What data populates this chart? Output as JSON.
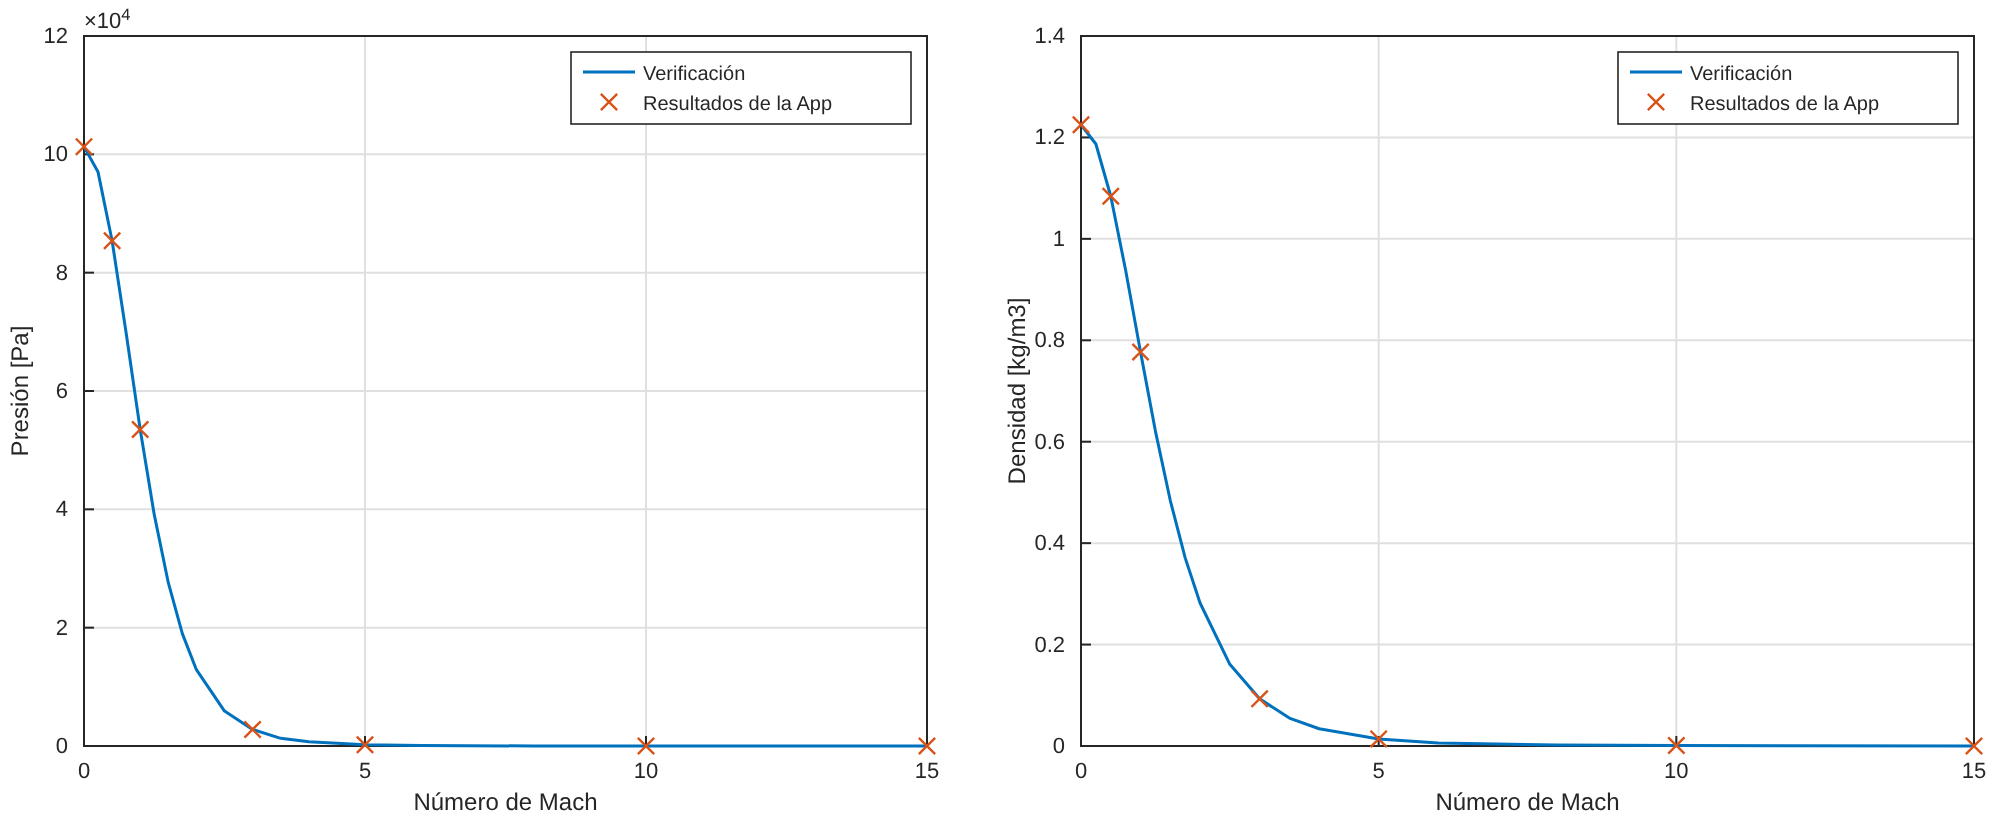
{
  "chart_data": [
    {
      "type": "line",
      "xlabel": "Número de Mach",
      "ylabel": "Presión [Pa]",
      "annotations": [
        "×10$^{4}$"
      ],
      "xlim": [
        0,
        15
      ],
      "xticks": [
        0,
        5,
        10,
        15
      ],
      "ylim": [
        0,
        12
      ],
      "yticks": [
        0,
        2,
        4,
        6,
        8,
        10,
        12
      ],
      "grid": true,
      "legend": "top right",
      "series": [
        {
          "name": "Verificación",
          "color": "#0072bd",
          "line_style": "solid",
          "x": [
            0,
            0.25,
            0.5,
            0.75,
            1,
            1.25,
            1.5,
            1.75,
            2,
            2.5,
            3,
            3.5,
            4,
            5,
            6,
            8,
            10,
            15
          ],
          "values": [
            10.13,
            9.7,
            8.54,
            6.98,
            5.35,
            3.91,
            2.76,
            1.9,
            1.29,
            0.59,
            0.28,
            0.13,
            0.07,
            0.02,
            0.01,
            0,
            0,
            0
          ]
        },
        {
          "name": "Resultados de la App",
          "type": "scatter",
          "color": "#d95319",
          "marker": "cross",
          "x": [
            0,
            0.5,
            1,
            3,
            5,
            10,
            15
          ],
          "values": [
            10.13,
            8.54,
            5.35,
            0.28,
            0.02,
            0,
            0
          ]
        }
      ]
    },
    {
      "type": "line",
      "xlabel": "Número de Mach",
      "ylabel": "Densidad [kg/m3]",
      "xlim": [
        0,
        15
      ],
      "xticks": [
        0,
        5,
        10,
        15
      ],
      "ylim": [
        0,
        1.4
      ],
      "yticks": [
        0,
        0.2,
        0.4,
        0.6,
        0.8,
        1,
        1.2,
        1.4
      ],
      "grid": true,
      "legend": "top right",
      "series": [
        {
          "name": "Verificación",
          "color": "#0072bd",
          "line_style": "solid",
          "x": [
            0,
            0.25,
            0.5,
            0.75,
            1,
            1.25,
            1.5,
            1.75,
            2,
            2.5,
            3,
            3.5,
            4,
            5,
            6,
            8,
            10,
            15
          ],
          "values": [
            1.225,
            1.187,
            1.084,
            0.938,
            0.777,
            0.621,
            0.484,
            0.371,
            0.282,
            0.161,
            0.093,
            0.055,
            0.034,
            0.014,
            0.006,
            0.002,
            0.001,
            0
          ]
        },
        {
          "name": "Resultados de la App",
          "type": "scatter",
          "color": "#d95319",
          "marker": "cross",
          "x": [
            0,
            0.5,
            1,
            3,
            5,
            10,
            15
          ],
          "values": [
            1.225,
            1.084,
            0.777,
            0.093,
            0.014,
            0.001,
            0
          ]
        }
      ]
    }
  ]
}
